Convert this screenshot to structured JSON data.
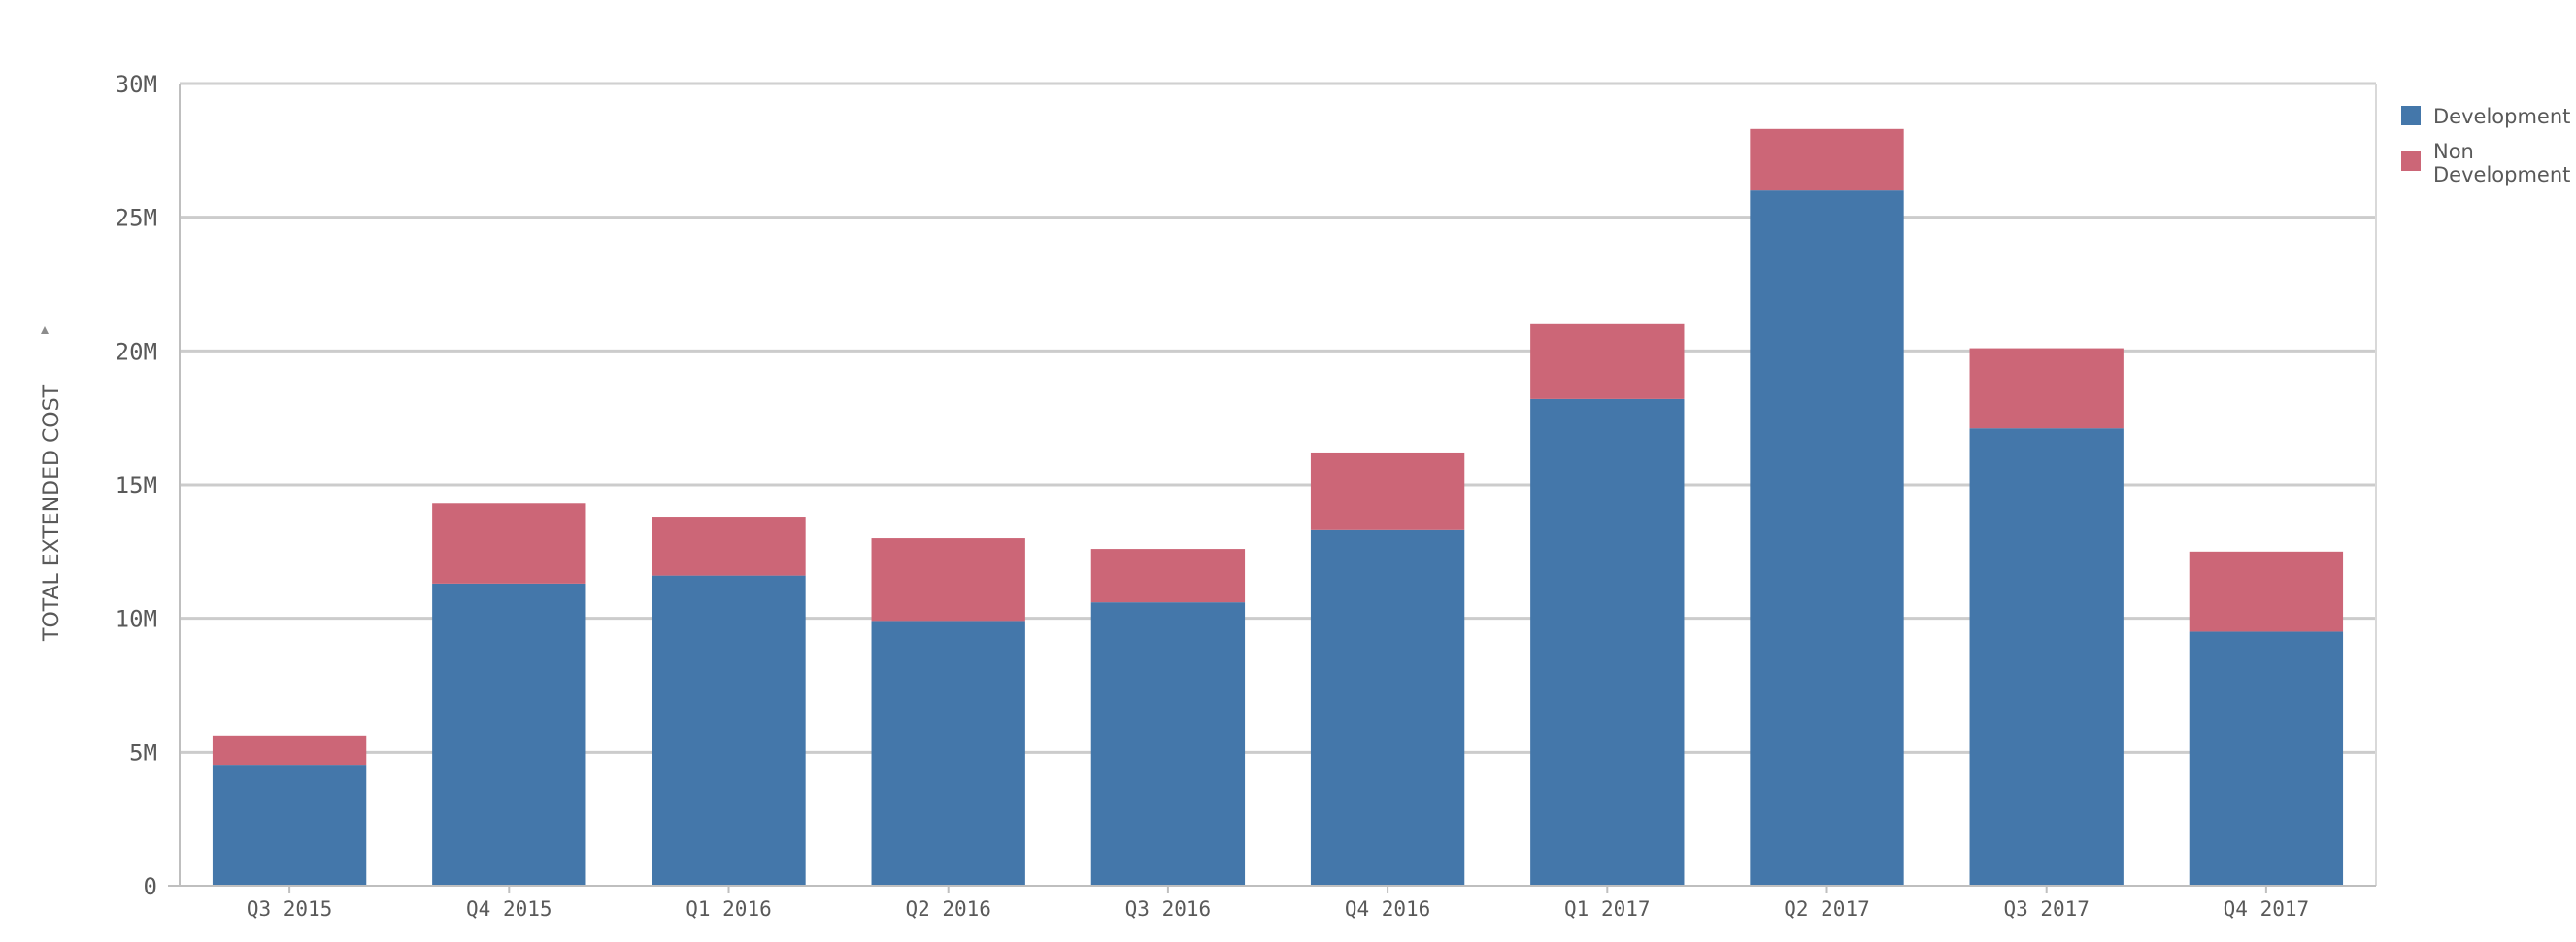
{
  "chart_data": {
    "type": "bar",
    "stacked": true,
    "categories": [
      "Q3 2015",
      "Q4 2015",
      "Q1 2016",
      "Q2 2016",
      "Q3 2016",
      "Q4 2016",
      "Q1 2017",
      "Q2 2017",
      "Q3 2017",
      "Q4 2017"
    ],
    "series": [
      {
        "name": "Development",
        "color": "#4477aa",
        "values": [
          4.5,
          11.3,
          11.6,
          9.9,
          10.6,
          13.3,
          18.2,
          26.0,
          17.1,
          9.5
        ]
      },
      {
        "name": "Non Development",
        "color": "#cc6677",
        "values": [
          1.1,
          3.0,
          2.2,
          3.1,
          2.0,
          2.9,
          2.8,
          2.3,
          3.0,
          3.0
        ]
      }
    ],
    "title": "",
    "xlabel": "",
    "ylabel": "TOTAL EXTENDED COST",
    "ylim": [
      0,
      30
    ],
    "yticks": [
      0,
      5,
      10,
      15,
      20,
      25,
      30
    ],
    "ytick_labels": [
      "0",
      "5M",
      "10M",
      "15M",
      "20M",
      "25M",
      "30M"
    ],
    "grid": true,
    "legend_position": "top-right"
  },
  "legend": {
    "items": [
      {
        "label": "Development",
        "color": "#4477aa"
      },
      {
        "label": "Non Development",
        "label_lines": [
          "Non",
          "Development"
        ],
        "color": "#cc6677"
      }
    ]
  },
  "y_axis": {
    "title": "TOTAL EXTENDED COST",
    "dropdown_icon": "caret-down-icon"
  }
}
